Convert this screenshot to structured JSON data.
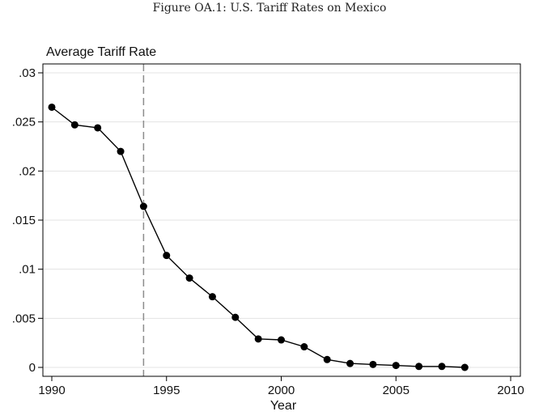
{
  "figure_caption": "Figure OA.1: U.S. Tariff Rates on Mexico",
  "chart_data": {
    "type": "line",
    "title": "",
    "ylabel": "Average Tariff Rate",
    "xlabel": "Year",
    "x": [
      1990,
      1991,
      1992,
      1993,
      1994,
      1995,
      1996,
      1997,
      1998,
      1999,
      2000,
      2001,
      2002,
      2003,
      2004,
      2005,
      2006,
      2007,
      2008
    ],
    "series": [
      {
        "name": "Average Tariff Rate",
        "values": [
          0.0265,
          0.0247,
          0.0244,
          0.022,
          0.0164,
          0.0114,
          0.0091,
          0.0072,
          0.0051,
          0.0029,
          0.0028,
          0.0021,
          0.0008,
          0.0004,
          0.0003,
          0.0002,
          0.0001,
          0.0001,
          0.0
        ]
      }
    ],
    "xlim": [
      1990,
      2010
    ],
    "ylim": [
      0,
      0.03
    ],
    "xticks": [
      1990,
      1995,
      2000,
      2005,
      2010
    ],
    "xtick_labels": [
      "1990",
      "1995",
      "2000",
      "2005",
      "2010"
    ],
    "yticks": [
      0,
      0.005,
      0.01,
      0.015,
      0.02,
      0.025,
      0.03
    ],
    "ytick_labels": [
      "0",
      ".005",
      ".01",
      ".015",
      ".02",
      ".025",
      ".03"
    ],
    "annotations": [
      {
        "type": "vline",
        "x": 1994,
        "style": "dashed"
      }
    ],
    "grid": true,
    "colors": {
      "line": "#000000",
      "marker": "#000000",
      "grid": "#e3e3e3",
      "vline": "#8c8c8c",
      "frame": "#000000"
    }
  }
}
